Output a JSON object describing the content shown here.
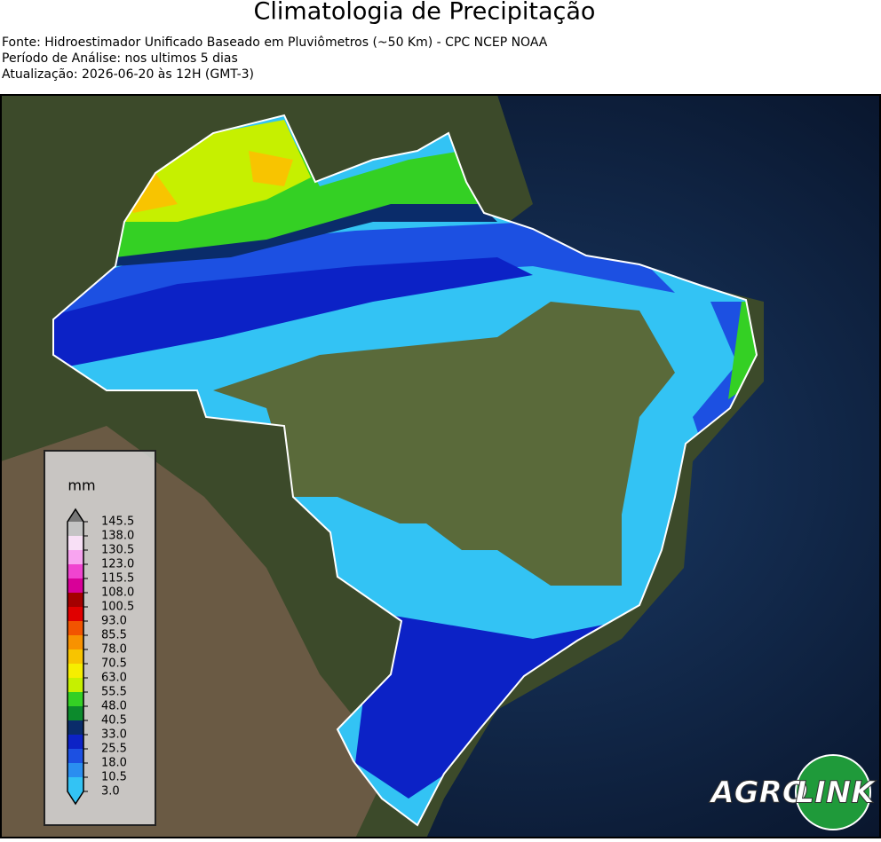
{
  "header": {
    "title": "Climatologia de Precipitação",
    "lines": [
      "Fonte: Hidroestimador Unificado Baseado em Pluviômetros (~50 Km) - CPC NCEP NOAA",
      "Período de Análise: nos ultimos 5 dias",
      "Atualização: 2026-06-20 às 12H (GMT-3)"
    ]
  },
  "legend": {
    "unit": "mm",
    "ticks": [
      {
        "value": 3.0,
        "label": "3.0"
      },
      10.5,
      {
        "value": 18.0,
        "label": "18.0"
      },
      25.5,
      {
        "value": 33.0,
        "label": "33.0"
      },
      40.5,
      {
        "value": 48.0,
        "label": "48.0"
      },
      55.5,
      {
        "value": 63.0,
        "label": "63.0"
      },
      70.5,
      {
        "value": 78.0,
        "label": "78.0"
      },
      85.5,
      {
        "value": 93.0,
        "label": "93.0"
      },
      100.5,
      {
        "value": 108.0,
        "label": "108.0"
      },
      115.5,
      {
        "value": 123.0,
        "label": "123.0"
      },
      130.5,
      {
        "value": 138.0,
        "label": "138.0"
      },
      145.5
    ],
    "colors": [
      "#33c3f4",
      "#2a8ef0",
      "#1c50e2",
      "#0c22c6",
      "#0a2c6a",
      "#0c8a2c",
      "#34d024",
      "#c6f000",
      "#f6ee00",
      "#f8c400",
      "#f89200",
      "#f25400",
      "#e00000",
      "#a40000",
      "#d80098",
      "#f044d0",
      "#f8a4f0",
      "#f8e0f6",
      "#c4c4c4"
    ]
  },
  "logo": {
    "left": "AGRO",
    "right": "LINK"
  }
}
